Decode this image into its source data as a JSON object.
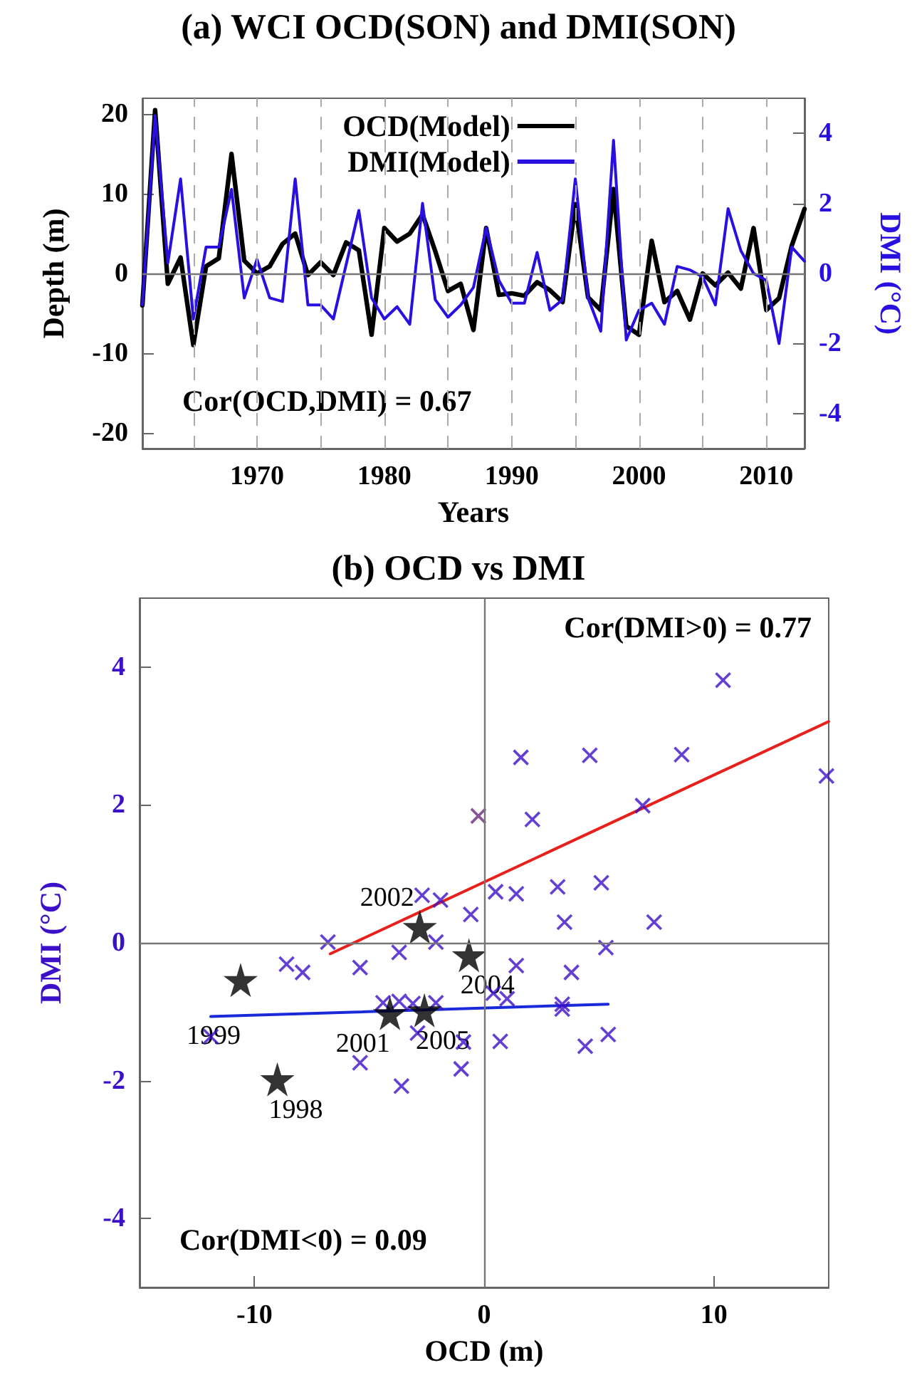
{
  "chart_data": [
    {
      "type": "line",
      "title": "(a) WCI OCD(SON) and DMI(SON)",
      "xlabel": "Years",
      "ylabel": "Depth (m)",
      "y2label": "DMI (°C)",
      "x": [
        1961,
        1962,
        1963,
        1964,
        1965,
        1966,
        1967,
        1968,
        1969,
        1970,
        1971,
        1972,
        1973,
        1974,
        1975,
        1976,
        1977,
        1978,
        1979,
        1980,
        1981,
        1982,
        1983,
        1984,
        1985,
        1986,
        1987,
        1988,
        1989,
        1990,
        1991,
        1992,
        1993,
        1994,
        1995,
        1996,
        1997,
        1998,
        1999,
        2000,
        2001,
        2002,
        2003,
        2004,
        2005,
        2006,
        2007,
        2008,
        2009,
        2010,
        2011,
        2012,
        2013
      ],
      "series": [
        {
          "name": "OCD(Model)",
          "color": "#000000",
          "values": [
            -4,
            20.5,
            -1.3,
            2,
            -9,
            0.9,
            1.9,
            15,
            1.6,
            0,
            0.9,
            3.7,
            5,
            -0.2,
            1.4,
            -0.2,
            3.9,
            2.9,
            -7.7,
            5.7,
            4,
            5,
            7.4,
            2.8,
            -2.2,
            -1.3,
            -7.1,
            5.7,
            -2.7,
            -2.5,
            -2.8,
            -1.1,
            -2.1,
            -3.6,
            8.7,
            -3,
            -4.6,
            10.6,
            -6.6,
            -7.7,
            4.1,
            -3.6,
            -2.2,
            -5.8,
            0,
            -1.5,
            0.1,
            -1.9,
            5.7,
            -4.6,
            -3.1,
            3.5,
            8.1
          ]
        },
        {
          "name": "DMI(Model)",
          "color": "#2a10e0",
          "axis": "y2",
          "values": [
            -0.9,
            4.5,
            0.3,
            2.7,
            -1.3,
            0.75,
            0.75,
            2.4,
            -0.7,
            0.4,
            -0.7,
            -0.8,
            2.7,
            -0.9,
            -0.9,
            -1.3,
            0.25,
            1.8,
            -0.7,
            -1.3,
            -0.95,
            -1.45,
            2,
            -0.75,
            -1.25,
            -0.9,
            -0.4,
            1.3,
            -0.2,
            -0.85,
            -0.85,
            0.6,
            -1.05,
            -0.75,
            2.7,
            -0.7,
            -1.65,
            3.8,
            -1.9,
            -1.05,
            -0.85,
            -1.45,
            0.2,
            0.1,
            -0.1,
            -0.9,
            1.85,
            0.65,
            0,
            -0.2,
            -2,
            0.75,
            0.35
          ]
        }
      ],
      "xlim": [
        1961,
        2013
      ],
      "xticks": [
        {
          "value": 1965,
          "label": null
        },
        1970,
        {
          "value": 1975,
          "label": null
        },
        1980,
        {
          "value": 1985,
          "label": null
        },
        1990,
        {
          "value": 1995,
          "label": null
        },
        2000,
        {
          "value": 2005,
          "label": null
        },
        2010
      ],
      "ylim": [
        -22,
        22
      ],
      "yticks": [
        -20,
        -10,
        0,
        10,
        20
      ],
      "y2lim": [
        -5,
        5
      ],
      "y2ticks": [
        -4,
        -2,
        0,
        2,
        4
      ],
      "grid": "x",
      "legend": "top",
      "marker": "none",
      "line_style": "solid",
      "ref_lines": [
        {
          "axis": "y",
          "value": 0,
          "color": "#777777"
        }
      ],
      "annotations": [
        "Cor(OCD,DMI) = 0.67"
      ]
    },
    {
      "type": "scatter",
      "title": "(b) OCD vs DMI",
      "xlabel": "OCD (m)",
      "ylabel": "DMI (°C)",
      "series": [
        {
          "color": "#3c10c8",
          "marker": "cross",
          "x": [
            -2.7,
            -1.9,
            0.5,
            -0.58,
            -6.8,
            -3.7,
            -2.1,
            -8.6,
            -7.9,
            -5.4,
            -4.4,
            -3.7,
            -3.1,
            -2.1,
            -11.9,
            -5.4,
            -3.6,
            -2.9,
            -0.9,
            -1,
            0.7,
            1,
            10.4,
            1.6,
            4.6,
            8.6,
            14.9,
            2.1,
            6.9,
            1.4,
            3.2,
            5.1,
            3.5,
            7.4,
            5.3,
            1.4,
            3.8,
            0.4,
            3.4,
            3.4,
            4.4,
            5.4
          ],
          "values": [
            0.69,
            0.62,
            0.74,
            0.41,
            0.01,
            -0.14,
            0.01,
            -0.31,
            -0.43,
            -0.36,
            -0.87,
            -0.85,
            -0.88,
            -0.87,
            -1.36,
            -1.74,
            -2.08,
            -1.31,
            -1.44,
            -1.83,
            -1.43,
            -0.81,
            3.81,
            2.69,
            2.72,
            2.73,
            2.42,
            1.79,
            1.99,
            0.71,
            0.81,
            0.87,
            0.3,
            0.3,
            -0.07,
            -0.33,
            -0.43,
            -0.73,
            -0.89,
            -0.96,
            -1.5,
            -1.33
          ]
        },
        {
          "color": "#6b2a80",
          "marker": "cross",
          "x": [
            -0.25
          ],
          "values": [
            1.84
          ]
        },
        {
          "color": "#000000",
          "marker": "star",
          "x": [
            -10.6,
            -9,
            -4.1,
            -2.6,
            -2.8,
            -0.66
          ],
          "values": [
            -0.54,
            -1.98,
            -1.02,
            -0.98,
            0.23,
            -0.18
          ]
        },
        {
          "type": "line",
          "color": "#e8201c",
          "marker": "none",
          "x": [
            -6.7,
            15
          ],
          "values": [
            -0.16,
            3.21
          ]
        },
        {
          "type": "line",
          "color": "#1a2ad8",
          "marker": "none",
          "x": [
            -11.9,
            5.4
          ],
          "values": [
            -1.07,
            -0.89
          ]
        }
      ],
      "xlim": [
        -15,
        15
      ],
      "xticks": [
        -10,
        0,
        10
      ],
      "ylim": [
        -5,
        5
      ],
      "yticks": [
        -4,
        -2,
        0,
        2,
        4
      ],
      "grid": false,
      "legend": false,
      "ref_lines": [
        {
          "axis": "x",
          "value": 0,
          "color": "#777777"
        },
        {
          "axis": "y",
          "value": 0,
          "color": "#777777"
        }
      ],
      "annotations": [
        "Cor(DMI<0) = 0.09",
        "Cor(DMI>0) = 0.77",
        {
          "text": "1999",
          "x": -10.6,
          "y": -0.54
        },
        {
          "text": "1998",
          "x": -9,
          "y": -1.98
        },
        {
          "text": "2001",
          "x": -4.1,
          "y": -1.02
        },
        {
          "text": "2005",
          "x": -2.6,
          "y": -0.98
        },
        {
          "text": "2002",
          "x": -2.8,
          "y": 0.23
        },
        {
          "text": "2004",
          "x": -0.66,
          "y": -0.18
        }
      ]
    }
  ]
}
